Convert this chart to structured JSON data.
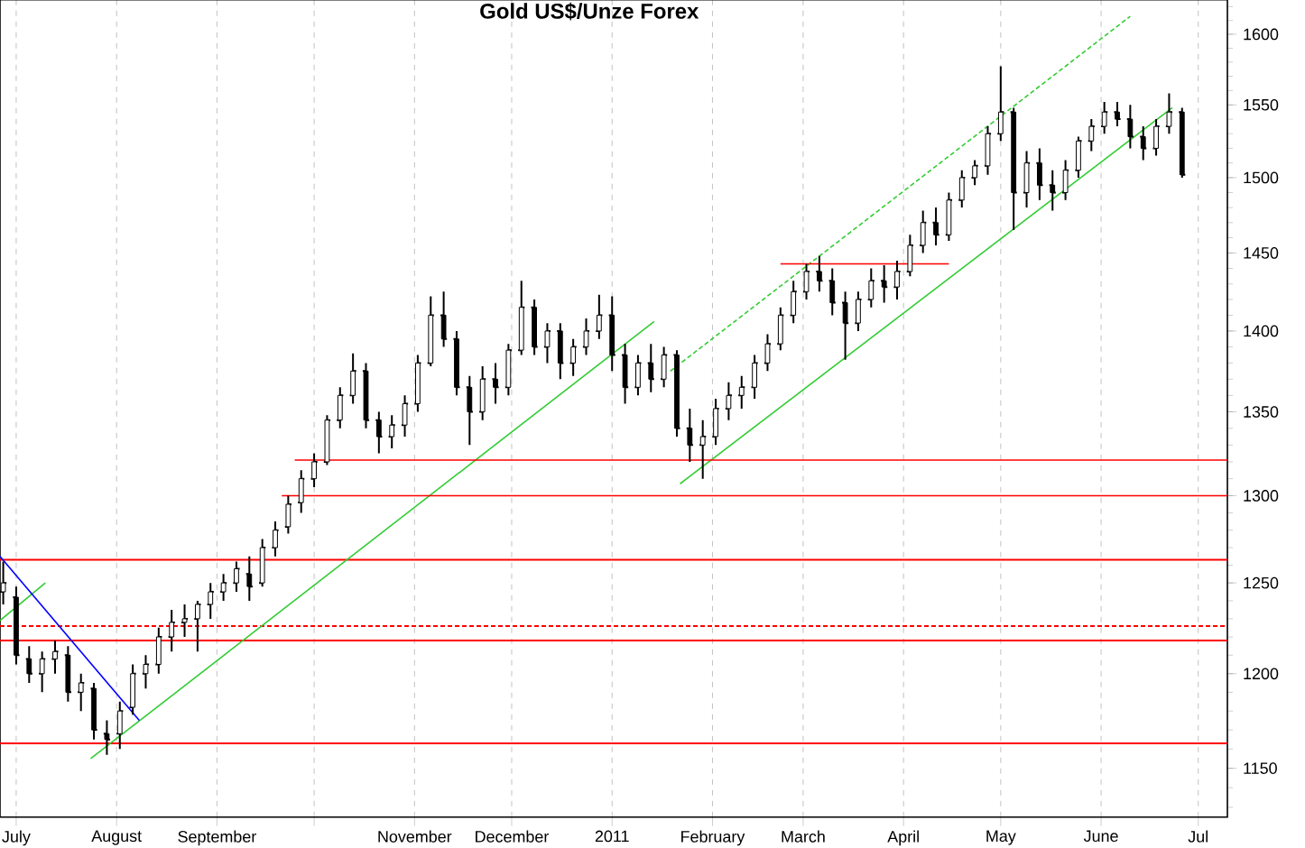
{
  "chart_data": {
    "type": "candlestick",
    "title": "Gold US$/Unze Forex",
    "log": true,
    "grid": "x",
    "xlim": [
      "2010-06-26",
      "2011-07-10"
    ],
    "xticks": [
      {
        "value": "2010-07-01",
        "label": "July"
      },
      {
        "value": "2010-08-01",
        "label": "August"
      },
      {
        "value": "2010-09-01",
        "label": "September"
      },
      {
        "value": "2010-10-01",
        "label": null
      },
      {
        "value": "2010-11-01",
        "label": "November"
      },
      {
        "value": "2010-12-01",
        "label": "December"
      },
      {
        "value": "2011-01-01",
        "label": "2011"
      },
      {
        "value": "2011-02-01",
        "label": "February"
      },
      {
        "value": "2011-03-01",
        "label": "March"
      },
      {
        "value": "2011-04-01",
        "label": "April"
      },
      {
        "value": "2011-05-01",
        "label": "May"
      },
      {
        "value": "2011-06-01",
        "label": "June"
      },
      {
        "value": "2011-07-01",
        "label": "Jul"
      }
    ],
    "ylim": [
      1125,
      1625
    ],
    "yticks": [
      1150,
      1200,
      1250,
      1300,
      1350,
      1400,
      1450,
      1500,
      1550,
      1600
    ],
    "x": [
      "2010-06-27",
      "2010-07-01",
      "2010-07-05",
      "2010-07-09",
      "2010-07-13",
      "2010-07-17",
      "2010-07-21",
      "2010-07-25",
      "2010-07-29",
      "2010-08-02",
      "2010-08-06",
      "2010-08-10",
      "2010-08-14",
      "2010-08-18",
      "2010-08-22",
      "2010-08-26",
      "2010-08-30",
      "2010-09-03",
      "2010-09-07",
      "2010-09-11",
      "2010-09-15",
      "2010-09-19",
      "2010-09-23",
      "2010-09-27",
      "2010-10-01",
      "2010-10-05",
      "2010-10-09",
      "2010-10-13",
      "2010-10-17",
      "2010-10-21",
      "2010-10-25",
      "2010-10-29",
      "2010-11-02",
      "2010-11-06",
      "2010-11-10",
      "2010-11-14",
      "2010-11-18",
      "2010-11-22",
      "2010-11-26",
      "2010-11-30",
      "2010-12-04",
      "2010-12-08",
      "2010-12-12",
      "2010-12-16",
      "2010-12-20",
      "2010-12-24",
      "2010-12-28",
      "2011-01-01",
      "2011-01-05",
      "2011-01-09",
      "2011-01-13",
      "2011-01-17",
      "2011-01-21",
      "2011-01-25",
      "2011-01-29",
      "2011-02-02",
      "2011-02-06",
      "2011-02-10",
      "2011-02-14",
      "2011-02-18",
      "2011-02-22",
      "2011-02-26",
      "2011-03-02",
      "2011-03-06",
      "2011-03-10",
      "2011-03-14",
      "2011-03-18",
      "2011-03-22",
      "2011-03-26",
      "2011-03-30",
      "2011-04-03",
      "2011-04-07",
      "2011-04-11",
      "2011-04-15",
      "2011-04-19",
      "2011-04-23",
      "2011-04-27",
      "2011-05-01",
      "2011-05-05",
      "2011-05-09",
      "2011-05-13",
      "2011-05-17",
      "2011-05-21",
      "2011-05-25",
      "2011-05-29",
      "2011-06-02",
      "2011-06-06",
      "2011-06-10",
      "2011-06-14",
      "2011-06-18",
      "2011-06-22",
      "2011-06-26"
    ],
    "ohlc": [
      [
        1245,
        1262,
        1238,
        1250
      ],
      [
        1242,
        1248,
        1205,
        1210
      ],
      [
        1208,
        1215,
        1195,
        1200
      ],
      [
        1200,
        1212,
        1190,
        1208
      ],
      [
        1208,
        1218,
        1200,
        1212
      ],
      [
        1210,
        1215,
        1185,
        1190
      ],
      [
        1190,
        1200,
        1180,
        1195
      ],
      [
        1192,
        1195,
        1165,
        1170
      ],
      [
        1168,
        1175,
        1157,
        1165
      ],
      [
        1168,
        1185,
        1160,
        1180
      ],
      [
        1182,
        1205,
        1178,
        1200
      ],
      [
        1200,
        1210,
        1192,
        1205
      ],
      [
        1205,
        1225,
        1200,
        1220
      ],
      [
        1220,
        1235,
        1212,
        1228
      ],
      [
        1228,
        1238,
        1220,
        1230
      ],
      [
        1230,
        1240,
        1212,
        1238
      ],
      [
        1238,
        1250,
        1230,
        1245
      ],
      [
        1245,
        1255,
        1240,
        1250
      ],
      [
        1250,
        1262,
        1245,
        1258
      ],
      [
        1255,
        1265,
        1240,
        1248
      ],
      [
        1250,
        1275,
        1248,
        1270
      ],
      [
        1270,
        1285,
        1265,
        1280
      ],
      [
        1282,
        1300,
        1278,
        1295
      ],
      [
        1296,
        1315,
        1290,
        1310
      ],
      [
        1310,
        1325,
        1305,
        1320
      ],
      [
        1320,
        1348,
        1318,
        1345
      ],
      [
        1345,
        1365,
        1340,
        1360
      ],
      [
        1360,
        1386,
        1355,
        1375
      ],
      [
        1375,
        1380,
        1340,
        1345
      ],
      [
        1345,
        1350,
        1325,
        1335
      ],
      [
        1335,
        1348,
        1328,
        1342
      ],
      [
        1342,
        1360,
        1335,
        1355
      ],
      [
        1355,
        1385,
        1350,
        1380
      ],
      [
        1380,
        1422,
        1378,
        1410
      ],
      [
        1410,
        1425,
        1390,
        1395
      ],
      [
        1395,
        1400,
        1360,
        1365
      ],
      [
        1365,
        1372,
        1330,
        1350
      ],
      [
        1350,
        1378,
        1345,
        1370
      ],
      [
        1370,
        1380,
        1355,
        1365
      ],
      [
        1365,
        1392,
        1360,
        1388
      ],
      [
        1388,
        1432,
        1385,
        1415
      ],
      [
        1415,
        1420,
        1385,
        1390
      ],
      [
        1390,
        1405,
        1380,
        1400
      ],
      [
        1400,
        1405,
        1370,
        1380
      ],
      [
        1380,
        1395,
        1372,
        1390
      ],
      [
        1390,
        1408,
        1385,
        1400
      ],
      [
        1400,
        1423,
        1395,
        1410
      ],
      [
        1410,
        1422,
        1375,
        1385
      ],
      [
        1385,
        1392,
        1355,
        1365
      ],
      [
        1365,
        1385,
        1360,
        1380
      ],
      [
        1380,
        1392,
        1362,
        1370
      ],
      [
        1370,
        1390,
        1365,
        1385
      ],
      [
        1385,
        1388,
        1335,
        1340
      ],
      [
        1340,
        1352,
        1320,
        1330
      ],
      [
        1330,
        1345,
        1310,
        1335
      ],
      [
        1335,
        1358,
        1330,
        1352
      ],
      [
        1352,
        1368,
        1345,
        1360
      ],
      [
        1360,
        1372,
        1352,
        1365
      ],
      [
        1365,
        1385,
        1358,
        1380
      ],
      [
        1380,
        1398,
        1375,
        1392
      ],
      [
        1392,
        1415,
        1388,
        1410
      ],
      [
        1410,
        1432,
        1405,
        1425
      ],
      [
        1425,
        1443,
        1420,
        1438
      ],
      [
        1438,
        1448,
        1425,
        1432
      ],
      [
        1432,
        1440,
        1410,
        1418
      ],
      [
        1418,
        1425,
        1382,
        1405
      ],
      [
        1405,
        1425,
        1400,
        1420
      ],
      [
        1420,
        1440,
        1415,
        1432
      ],
      [
        1432,
        1442,
        1418,
        1428
      ],
      [
        1428,
        1445,
        1420,
        1438
      ],
      [
        1438,
        1462,
        1435,
        1455
      ],
      [
        1455,
        1478,
        1450,
        1470
      ],
      [
        1470,
        1480,
        1455,
        1462
      ],
      [
        1462,
        1490,
        1458,
        1485
      ],
      [
        1485,
        1505,
        1480,
        1500
      ],
      [
        1500,
        1512,
        1495,
        1508
      ],
      [
        1508,
        1535,
        1502,
        1530
      ],
      [
        1530,
        1577,
        1525,
        1545
      ],
      [
        1545,
        1548,
        1465,
        1490
      ],
      [
        1490,
        1518,
        1480,
        1510
      ],
      [
        1510,
        1520,
        1485,
        1495
      ],
      [
        1495,
        1505,
        1478,
        1490
      ],
      [
        1490,
        1512,
        1485,
        1505
      ],
      [
        1505,
        1528,
        1500,
        1525
      ],
      [
        1525,
        1540,
        1518,
        1535
      ],
      [
        1535,
        1552,
        1530,
        1545
      ],
      [
        1545,
        1552,
        1535,
        1540
      ],
      [
        1540,
        1550,
        1520,
        1528
      ],
      [
        1528,
        1535,
        1512,
        1520
      ],
      [
        1520,
        1540,
        1515,
        1535
      ],
      [
        1535,
        1558,
        1530,
        1545
      ],
      [
        1545,
        1548,
        1500,
        1502
      ]
    ],
    "series": [
      {
        "type": "line",
        "color": "#33cc33",
        "x": [
          "2010-06-26",
          "2010-07-10"
        ],
        "values": [
          1229,
          1250
        ]
      },
      {
        "type": "line",
        "color": "#33cc33",
        "x": [
          "2010-07-24",
          "2011-01-14"
        ],
        "values": [
          1155,
          1406
        ]
      },
      {
        "type": "line",
        "color": "#33cc33",
        "x": [
          "2011-01-22",
          "2011-06-23"
        ],
        "values": [
          1307,
          1548
        ]
      },
      {
        "type": "line",
        "color": "#33cc33",
        "line_style": "dashed",
        "x": [
          "2011-01-19",
          "2011-06-10"
        ],
        "values": [
          1375,
          1613
        ]
      },
      {
        "type": "line",
        "color": "#0000ff",
        "x": [
          "2010-06-26",
          "2010-08-08"
        ],
        "values": [
          1265,
          1175
        ]
      },
      {
        "type": "line",
        "color": "#ff0000",
        "x": [
          "2011-02-22",
          "2011-04-15"
        ],
        "values": [
          1443,
          1443
        ]
      },
      {
        "type": "line",
        "color": "#ff0000",
        "x": [
          "2010-09-21",
          "2011-07-10"
        ],
        "values": [
          1300,
          1300
        ]
      },
      {
        "type": "line",
        "color": "#ff0000",
        "x": [
          "2010-09-25",
          "2011-07-10"
        ],
        "values": [
          1321,
          1321
        ]
      }
    ],
    "ref_lines": [
      {
        "axis": "y",
        "value": 1163,
        "color": "#ff0000"
      },
      {
        "axis": "y",
        "value": 1218,
        "color": "#ff0000"
      },
      {
        "axis": "y",
        "value": 1226,
        "color": "#ff0000",
        "line_style": "dashed"
      },
      {
        "axis": "y",
        "value": 1263,
        "color": "#ff0000"
      }
    ]
  }
}
